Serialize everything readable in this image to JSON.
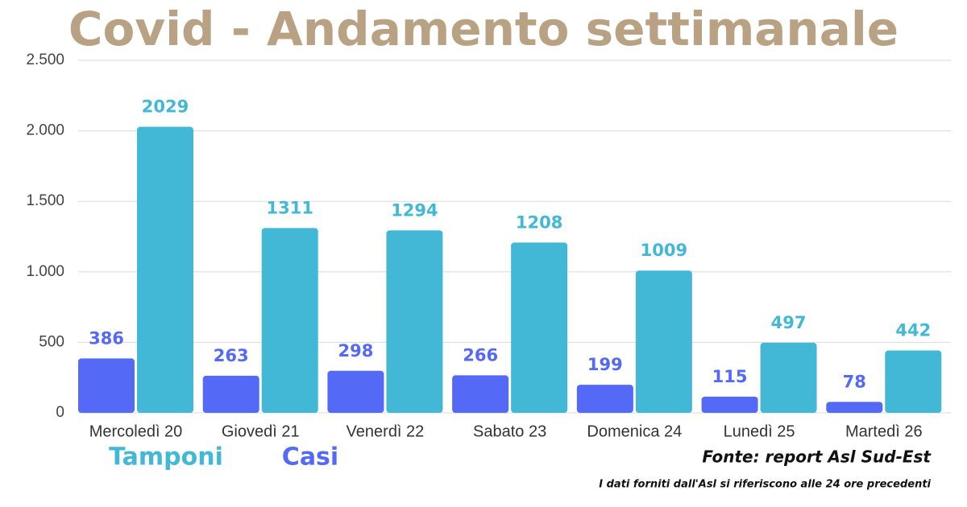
{
  "chart_data": {
    "type": "bar",
    "title": "Covid - Andamento settimanale",
    "categories": [
      "Mercoledì 20",
      "Giovedì 21",
      "Venerdì 22",
      "Sabato 23",
      "Domenica 24",
      "Lunedì 25",
      "Martedì 26"
    ],
    "series": [
      {
        "name": "Casi",
        "color": "#5469f5",
        "values": [
          386,
          263,
          298,
          266,
          199,
          115,
          78
        ]
      },
      {
        "name": "Tamponi",
        "color": "#42b8d6",
        "values": [
          2029,
          1311,
          1294,
          1208,
          1009,
          497,
          442
        ]
      }
    ],
    "ylim": [
      0,
      2500
    ],
    "yticks": [
      0,
      500,
      {
        "value": 1000,
        "label": "1.000"
      },
      {
        "value": 1500,
        "label": "1.500"
      },
      {
        "value": 2000,
        "label": "2.000"
      },
      {
        "value": 2500,
        "label": "2.500"
      }
    ],
    "grid": true,
    "source": "Fonte: report Asl Sud-Est",
    "note": "I dati forniti dall'Asl si riferiscono alle 24 ore precedenti"
  }
}
